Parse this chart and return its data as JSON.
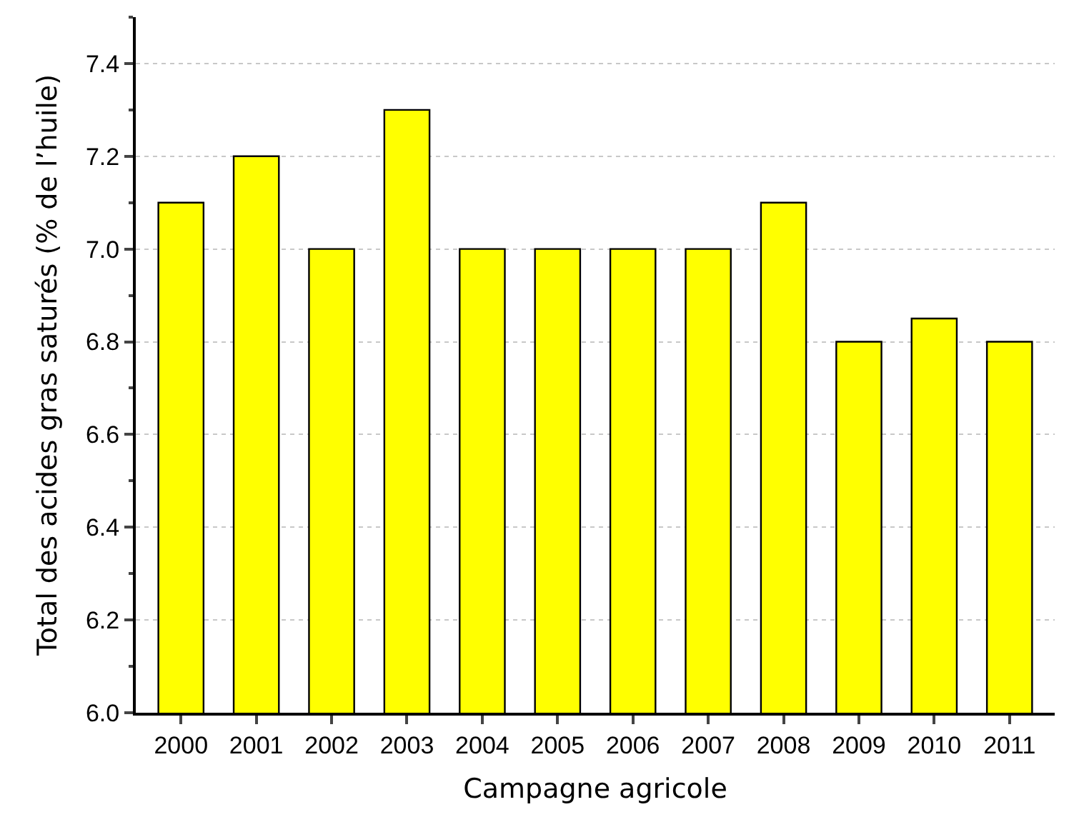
{
  "chart_data": {
    "type": "bar",
    "xlabel": "Campagne agricole",
    "ylabel": "Total des acides gras saturés (% de l’huile)",
    "categories": [
      "2000",
      "2001",
      "2002",
      "2003",
      "2004",
      "2005",
      "2006",
      "2007",
      "2008",
      "2009",
      "2010",
      "2011"
    ],
    "values": [
      7.1,
      7.2,
      7.0,
      7.3,
      7.0,
      7.0,
      7.0,
      7.0,
      7.1,
      6.8,
      6.85,
      6.8
    ],
    "color": "#ffff00",
    "ylim": [
      6.0,
      7.5
    ],
    "yticks": [
      {
        "value": 6.0,
        "label": "6.0"
      },
      {
        "value": 6.2,
        "label": "6.2"
      },
      {
        "value": 6.4,
        "label": "6.4"
      },
      {
        "value": 6.6,
        "label": "6.6"
      },
      {
        "value": 6.8,
        "label": "6.8"
      },
      {
        "value": 7.0,
        "label": "7.0"
      },
      {
        "value": 7.2,
        "label": "7.2"
      },
      {
        "value": 7.4,
        "label": "7.4"
      }
    ],
    "grid": "y"
  }
}
